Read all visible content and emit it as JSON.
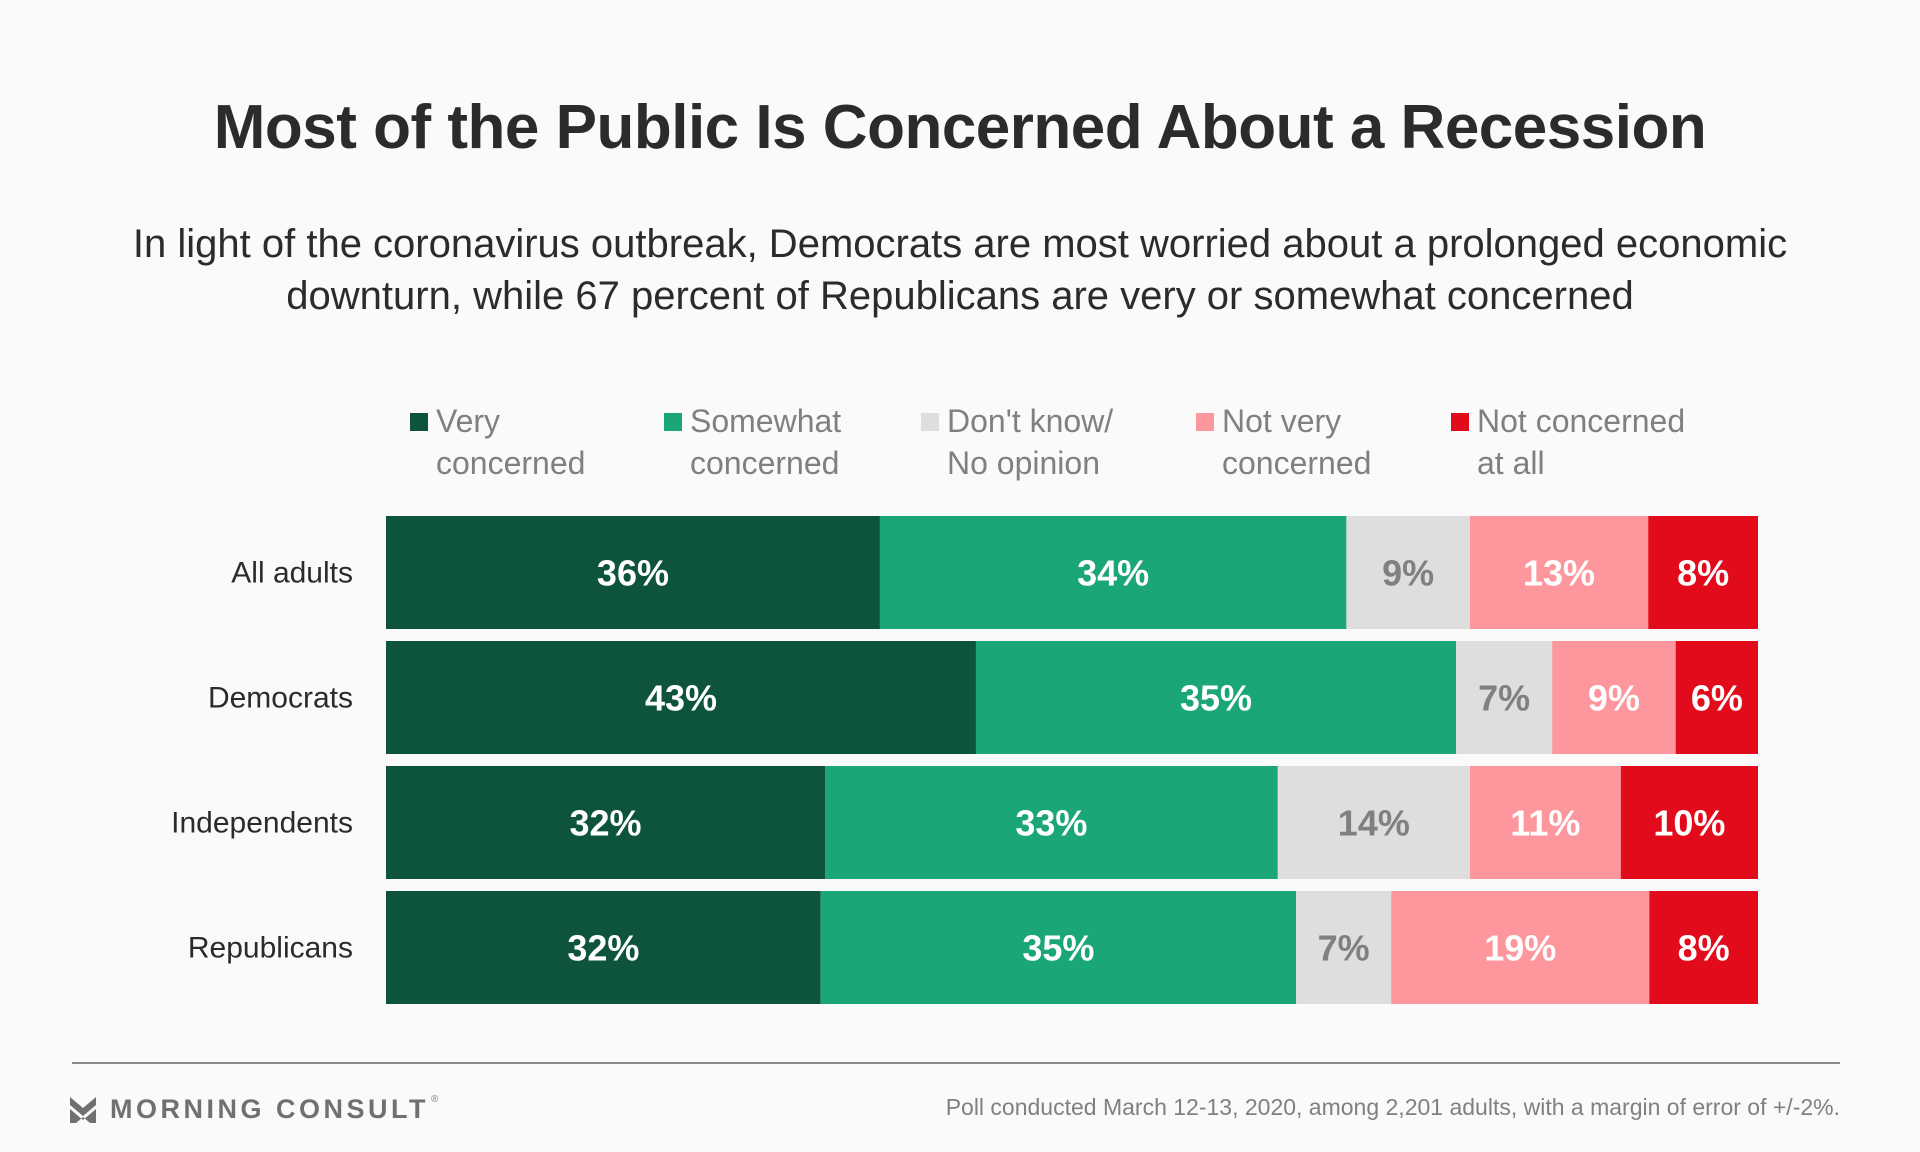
{
  "header": {
    "title": "Most of the Public Is Concerned About a Recession",
    "subtitle": "In light of the coronavirus outbreak, Democrats are most worried about a prolonged economic downturn, while 67 percent of Republicans are very or somewhat concerned"
  },
  "legend": [
    {
      "label": "Very\nconcerned",
      "color": "#0d533e"
    },
    {
      "label": "Somewhat\nconcerned",
      "color": "#1ba67a"
    },
    {
      "label": "Don't know/\nNo opinion",
      "color": "#dedede"
    },
    {
      "label": "Not very\nconcerned",
      "color": "#fd969d"
    },
    {
      "label": "Not concerned\nat all",
      "color": "#e20b1b"
    }
  ],
  "chart_data": {
    "type": "bar",
    "orientation": "horizontal",
    "stacked": true,
    "title": "Most of the Public Is Concerned About a Recession",
    "subtitle": "In light of the coronavirus outbreak, Democrats are most worried about a prolonged economic downturn, while 67 percent of Republicans are very or somewhat concerned",
    "xlabel": "",
    "ylabel": "",
    "unit": "%",
    "legend_position": "top",
    "grid": false,
    "categories": [
      "All adults",
      "Democrats",
      "Independents",
      "Republicans"
    ],
    "series": [
      {
        "name": "Very concerned",
        "color": "#0d533e",
        "label_color": "#ffffff",
        "values": [
          36,
          43,
          32,
          32
        ]
      },
      {
        "name": "Somewhat concerned",
        "color": "#1ba67a",
        "label_color": "#ffffff",
        "values": [
          34,
          35,
          33,
          35
        ]
      },
      {
        "name": "Don't know/No opinion",
        "color": "#dedede",
        "label_color": "#808080",
        "values": [
          9,
          7,
          14,
          7
        ]
      },
      {
        "name": "Not very concerned",
        "color": "#fd969d",
        "label_color": "#ffffff",
        "values": [
          13,
          9,
          11,
          19
        ]
      },
      {
        "name": "Not concerned at all",
        "color": "#e20b1b",
        "label_color": "#ffffff",
        "values": [
          8,
          6,
          10,
          8
        ]
      }
    ]
  },
  "footer": {
    "brand": "MORNING CONSULT",
    "brand_mark": "®",
    "source": "Poll conducted March 12-13, 2020, among 2,201 adults, with a margin of error of +/-2%."
  }
}
